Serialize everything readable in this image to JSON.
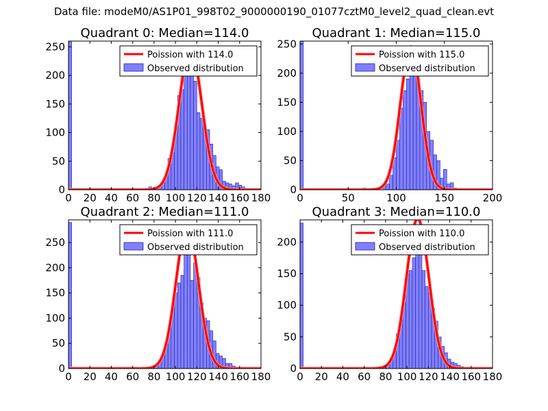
{
  "suptitle": "Data file: modeM0/AS1P01_998T02_9000000190_01077cztM0_level2_quad_clean.evt",
  "colors": {
    "bar_fill": "#8080ff",
    "bar_edge": "#2020a0",
    "curve": "#ff0000",
    "curve_halo": "#ff9090"
  },
  "chart_data": [
    {
      "type": "bar",
      "title": "Quadrant 0: Median=114.0",
      "xlim": [
        0,
        180
      ],
      "ylim": [
        0,
        260
      ],
      "xticks": [
        0,
        20,
        40,
        60,
        80,
        100,
        120,
        140,
        160,
        180
      ],
      "yticks": [
        0,
        50,
        100,
        150,
        200,
        250
      ],
      "bin_width": 3,
      "bins_x": [
        0,
        66,
        72,
        75,
        78,
        81,
        84,
        87,
        90,
        93,
        96,
        99,
        102,
        105,
        108,
        111,
        114,
        117,
        120,
        123,
        126,
        129,
        132,
        135,
        138,
        141,
        144,
        147,
        150,
        153,
        156,
        159,
        162
      ],
      "bins_y": [
        260,
        2,
        1,
        5,
        2,
        3,
        6,
        12,
        25,
        55,
        65,
        110,
        165,
        175,
        215,
        240,
        215,
        190,
        135,
        125,
        110,
        105,
        80,
        60,
        40,
        35,
        15,
        12,
        10,
        7,
        12,
        8,
        5
      ],
      "poisson_mean": 114.0,
      "poisson_peak": 248,
      "legend": [
        "Poission with 114.0",
        "Observed distribution"
      ]
    },
    {
      "type": "bar",
      "title": "Quadrant 1: Median=115.0",
      "xlim": [
        0,
        200
      ],
      "ylim": [
        0,
        255
      ],
      "xticks": [
        0,
        50,
        100,
        150,
        200
      ],
      "yticks": [
        0,
        50,
        100,
        150,
        200,
        250
      ],
      "bin_width": 3.5,
      "bins_x": [
        0,
        65,
        79,
        86,
        89.5,
        93,
        96.5,
        100,
        103.5,
        107,
        110.5,
        114,
        117.5,
        121,
        124.5,
        128,
        131.5,
        135,
        138.5,
        142,
        145.5,
        149,
        152.5,
        156,
        159.5,
        163,
        170
      ],
      "bins_y": [
        255,
        3,
        2,
        6,
        10,
        25,
        55,
        85,
        140,
        170,
        190,
        245,
        205,
        190,
        170,
        150,
        100,
        85,
        60,
        50,
        20,
        35,
        10,
        12,
        3,
        1,
        1
      ],
      "poisson_mean": 115.0,
      "poisson_peak": 245,
      "legend": [
        "Poission with 115.0",
        "Observed distribution"
      ]
    },
    {
      "type": "bar",
      "title": "Quadrant 2: Median=111.0",
      "xlim": [
        0,
        180
      ],
      "ylim": [
        0,
        295
      ],
      "xticks": [
        0,
        20,
        40,
        60,
        80,
        100,
        120,
        140,
        160,
        180
      ],
      "yticks": [
        0,
        50,
        100,
        150,
        200,
        250
      ],
      "bin_width": 3,
      "bins_x": [
        0,
        72,
        75,
        78,
        81,
        84,
        87,
        90,
        93,
        96,
        99,
        102,
        105,
        108,
        111,
        114,
        117,
        120,
        123,
        126,
        129,
        132,
        135,
        138,
        141,
        144,
        147,
        150,
        153,
        156,
        159
      ],
      "bins_y": [
        290,
        2,
        3,
        5,
        8,
        15,
        25,
        50,
        85,
        120,
        150,
        170,
        185,
        230,
        260,
        175,
        210,
        180,
        130,
        100,
        95,
        75,
        55,
        30,
        25,
        20,
        10,
        10,
        5,
        3,
        3
      ],
      "poisson_mean": 111.0,
      "poisson_peak": 283,
      "legend": [
        "Poission with 111.0",
        "Observed distribution"
      ]
    },
    {
      "type": "bar",
      "title": "Quadrant 3: Median=110.0",
      "xlim": [
        0,
        180
      ],
      "ylim": [
        0,
        235
      ],
      "xticks": [
        0,
        20,
        40,
        60,
        80,
        100,
        120,
        140,
        160,
        180
      ],
      "yticks": [
        0,
        50,
        100,
        150,
        200
      ],
      "bin_width": 3,
      "bins_x": [
        0,
        48,
        54,
        60,
        66,
        72,
        75,
        78,
        81,
        84,
        87,
        90,
        93,
        96,
        99,
        102,
        105,
        108,
        111,
        114,
        117,
        120,
        123,
        126,
        129,
        132,
        135,
        138,
        141,
        144,
        147,
        150,
        153,
        159
      ],
      "bins_y": [
        230,
        1,
        1,
        1,
        1,
        2,
        3,
        5,
        8,
        15,
        30,
        55,
        80,
        105,
        150,
        155,
        175,
        210,
        190,
        155,
        130,
        120,
        95,
        75,
        50,
        35,
        25,
        15,
        10,
        8,
        5,
        3,
        2,
        1
      ],
      "poisson_mean": 110.0,
      "poisson_peak": 237,
      "legend": [
        "Poission with 110.0",
        "Observed distribution"
      ]
    }
  ]
}
